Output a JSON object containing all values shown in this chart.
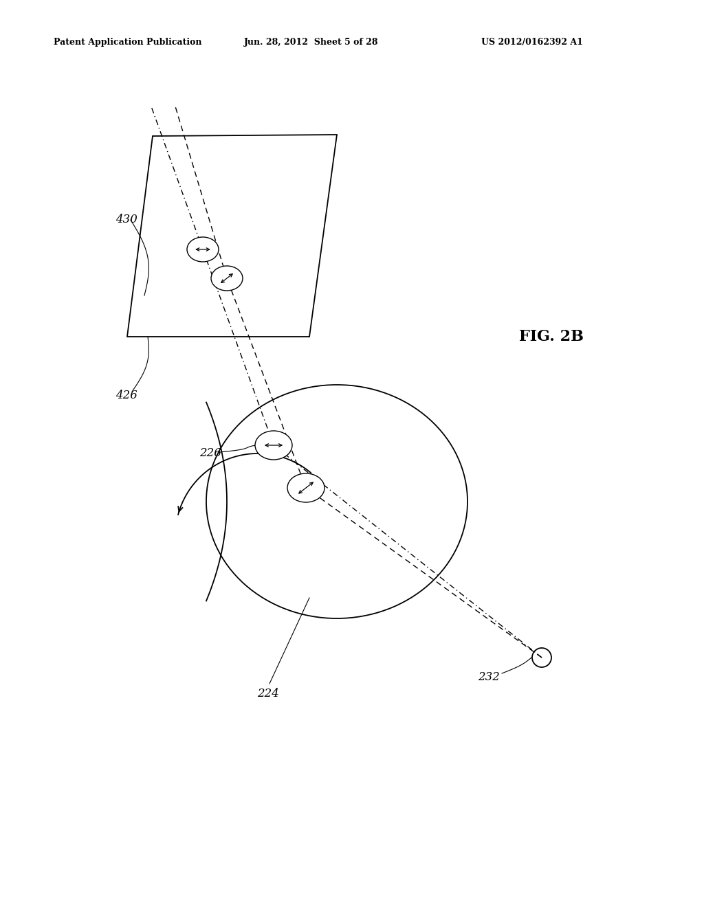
{
  "bg_color": "#ffffff",
  "header_text": "Patent Application Publication",
  "header_date": "Jun. 28, 2012  Sheet 5 of 28",
  "header_patent": "US 2012/0162392 A1",
  "fig_label": "FIG. 2B",
  "label_430": "430",
  "label_426": "426",
  "label_226": "226",
  "label_224": "224",
  "label_232": "232",
  "line_color": "#000000"
}
